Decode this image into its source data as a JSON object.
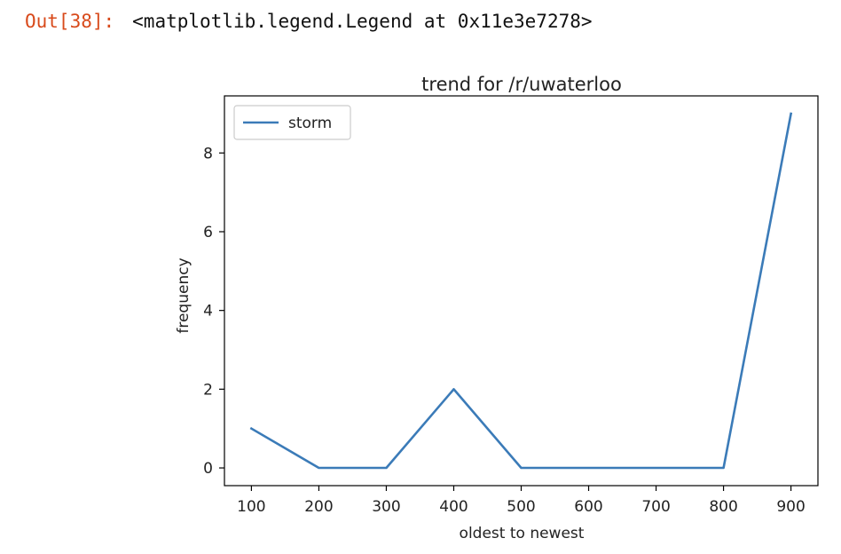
{
  "cell": {
    "prompt": "Out[38]:",
    "output_text": "<matplotlib.legend.Legend at 0x11e3e7278>"
  },
  "chart_data": {
    "type": "line",
    "title": "trend for /r/uwaterloo",
    "xlabel": "oldest to newest",
    "ylabel": "frequency",
    "x": [
      100,
      200,
      300,
      400,
      500,
      600,
      700,
      800,
      900
    ],
    "series": [
      {
        "name": "storm",
        "values": [
          1,
          0,
          0,
          2,
          0,
          0,
          0,
          0,
          9
        ],
        "color": "#3b7bb8"
      }
    ],
    "xticks": [
      100,
      200,
      300,
      400,
      500,
      600,
      700,
      800,
      900
    ],
    "yticks": [
      0,
      2,
      4,
      6,
      8
    ],
    "xlim": [
      60,
      940
    ],
    "ylim": [
      -0.45,
      9.45
    ],
    "legend_position": "upper-left",
    "grid": false
  }
}
